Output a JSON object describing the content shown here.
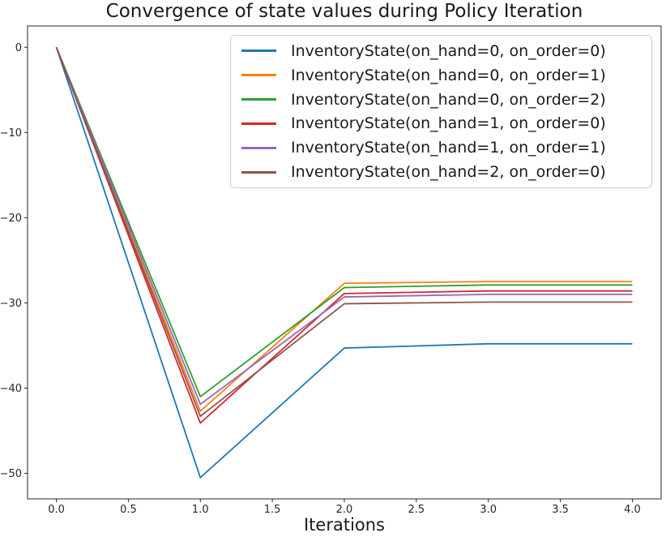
{
  "figure": {
    "background": "#ffffff",
    "text_color": "#1a1a1a",
    "spine_color": "#262626",
    "legend_border_color": "#cccccc"
  },
  "chart_data": {
    "type": "line",
    "title": "Convergence of state values during Policy Iteration",
    "xlabel": "Iterations",
    "ylabel": "",
    "x": [
      0,
      1,
      2,
      3,
      4
    ],
    "series": [
      {
        "name": "InventoryState(on_hand=0, on_order=0)",
        "color": "#1f77b4",
        "values": [
          0,
          -50.5,
          -35.3,
          -34.8,
          -34.8
        ]
      },
      {
        "name": "InventoryState(on_hand=0, on_order=1)",
        "color": "#ff7f0e",
        "values": [
          0,
          -42.7,
          -27.7,
          -27.5,
          -27.5
        ]
      },
      {
        "name": "InventoryState(on_hand=0, on_order=2)",
        "color": "#2ca02c",
        "values": [
          0,
          -41.0,
          -28.2,
          -27.9,
          -27.9
        ]
      },
      {
        "name": "InventoryState(on_hand=1, on_order=0)",
        "color": "#d62728",
        "values": [
          0,
          -44.1,
          -28.9,
          -28.6,
          -28.6
        ]
      },
      {
        "name": "InventoryState(on_hand=1, on_order=1)",
        "color": "#9467bd",
        "values": [
          0,
          -41.9,
          -29.3,
          -29.0,
          -29.0
        ]
      },
      {
        "name": "InventoryState(on_hand=2, on_order=0)",
        "color": "#8c564b",
        "values": [
          0,
          -43.3,
          -30.1,
          -29.9,
          -29.9
        ]
      }
    ],
    "xticks": [
      0,
      0.5,
      1,
      1.5,
      2,
      2.5,
      3,
      3.5,
      4
    ],
    "xtick_labels": [
      "0.0",
      "0.5",
      "1.0",
      "1.5",
      "2.0",
      "2.5",
      "3.0",
      "3.5",
      "4.0"
    ],
    "yticks": [
      0,
      -10,
      -20,
      -30,
      -40,
      -50
    ],
    "ytick_labels": [
      "0",
      "−10",
      "−20",
      "−30",
      "−40",
      "−50"
    ],
    "xlim": [
      -0.2,
      4.2
    ],
    "ylim": [
      -53.0,
      2.5
    ],
    "grid": false,
    "legend_position": "upper right"
  }
}
